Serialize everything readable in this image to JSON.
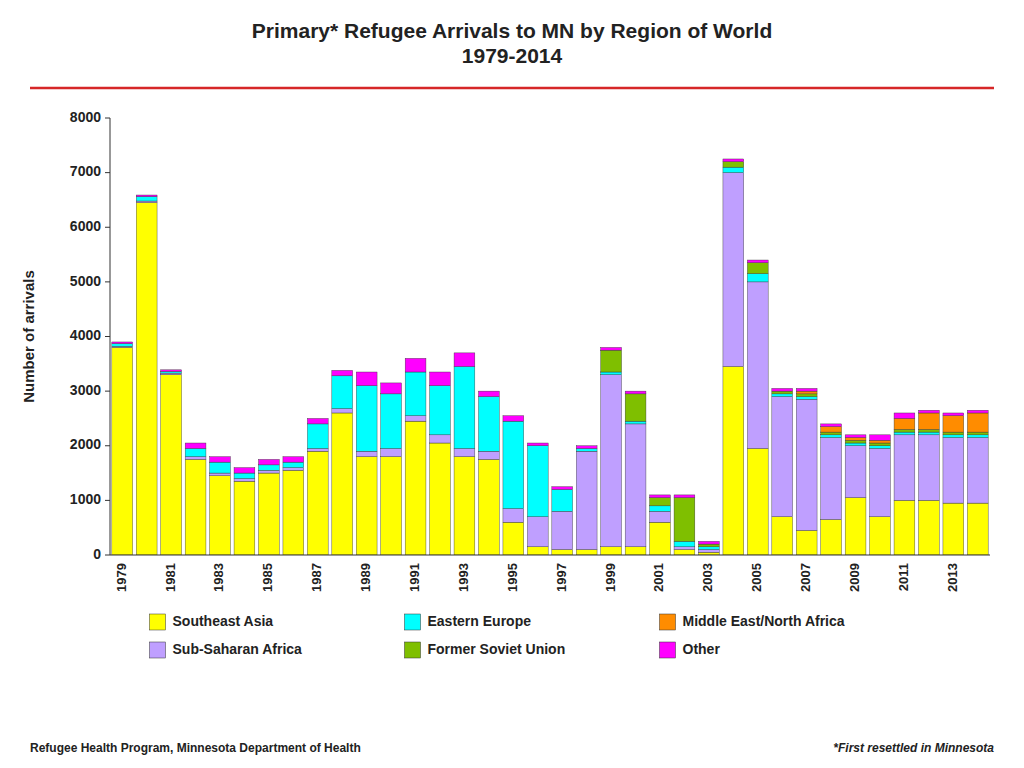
{
  "chart_data": {
    "type": "bar",
    "stacked": true,
    "title": "Primary* Refugee Arrivals to MN by Region of World\n1979-2014",
    "y_label": "Number of arrivals",
    "categories": [
      "1979",
      null,
      "1981",
      null,
      "1983",
      null,
      "1985",
      null,
      "1987",
      null,
      "1989",
      null,
      "1991",
      null,
      "1993",
      null,
      "1995",
      null,
      "1997",
      null,
      "1999",
      null,
      "2001",
      null,
      "2003",
      null,
      "2005",
      null,
      "2007",
      null,
      "2009",
      null,
      "2011",
      null,
      "2013",
      null
    ],
    "series": [
      {
        "name": "Southeast Asia",
        "color": "#FFFF00",
        "values": [
          3800,
          6450,
          3300,
          1750,
          1450,
          1350,
          1500,
          1550,
          1900,
          2600,
          1800,
          1800,
          2450,
          2050,
          1800,
          1750,
          600,
          150,
          100,
          100,
          150,
          150,
          600,
          100,
          50,
          3450,
          1950,
          700,
          450,
          650,
          1050,
          700,
          1000,
          1000,
          950,
          950
        ]
      },
      {
        "name": "Sub-Saharan Africa",
        "color": "#BF9FFF",
        "values": [
          20,
          30,
          30,
          50,
          50,
          50,
          50,
          50,
          50,
          80,
          100,
          150,
          100,
          150,
          150,
          150,
          250,
          550,
          700,
          1800,
          3150,
          2250,
          200,
          50,
          50,
          3550,
          3050,
          2200,
          2400,
          1500,
          950,
          1250,
          1200,
          1200,
          1200,
          1200
        ]
      },
      {
        "name": "Eastern Europe",
        "color": "#00FFFF",
        "values": [
          50,
          80,
          30,
          150,
          200,
          100,
          100,
          100,
          450,
          600,
          1200,
          1000,
          800,
          900,
          1500,
          1000,
          1600,
          1300,
          400,
          50,
          50,
          50,
          100,
          100,
          50,
          100,
          150,
          50,
          50,
          50,
          50,
          50,
          50,
          50,
          50,
          50
        ]
      },
      {
        "name": "Former Soviet Union",
        "color": "#7FBF00",
        "values": [
          0,
          0,
          0,
          0,
          0,
          0,
          0,
          0,
          0,
          0,
          0,
          0,
          0,
          0,
          0,
          0,
          0,
          0,
          0,
          0,
          400,
          500,
          150,
          800,
          50,
          100,
          200,
          50,
          50,
          50,
          50,
          50,
          50,
          50,
          50,
          50
        ]
      },
      {
        "name": "Middle East/North Africa",
        "color": "#FF8C00",
        "values": [
          0,
          0,
          0,
          0,
          0,
          0,
          0,
          0,
          0,
          0,
          0,
          0,
          0,
          0,
          0,
          0,
          0,
          0,
          0,
          0,
          0,
          0,
          0,
          0,
          0,
          0,
          0,
          0,
          50,
          100,
          50,
          50,
          200,
          300,
          300,
          350
        ]
      },
      {
        "name": "Other",
        "color": "#FF00FF",
        "values": [
          30,
          30,
          30,
          100,
          100,
          100,
          100,
          100,
          100,
          100,
          250,
          200,
          250,
          250,
          250,
          100,
          100,
          50,
          50,
          50,
          50,
          50,
          50,
          50,
          50,
          50,
          50,
          50,
          50,
          50,
          50,
          100,
          100,
          50,
          50,
          50
        ]
      }
    ],
    "ylim": [
      0,
      8000
    ],
    "yticks": [
      0,
      1000,
      2000,
      3000,
      4000,
      5000,
      6000,
      7000,
      8000
    ],
    "grid": false,
    "legend": "bottom",
    "annotations": [
      "Refugee Health Program, Minnesota Department of Health",
      "*First resettled in Minnesota"
    ]
  }
}
